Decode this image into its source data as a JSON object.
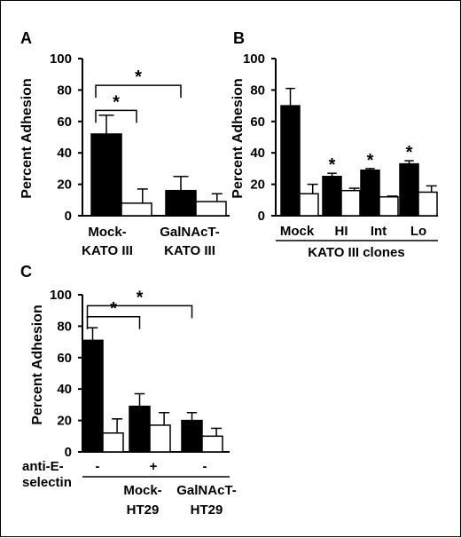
{
  "chart_data": [
    {
      "type": "bar",
      "panel_label": "A",
      "ylabel": "Percent Adhesion",
      "ylim": [
        0,
        100
      ],
      "yticks": [
        "0",
        "20",
        "40",
        "60",
        "80",
        "100"
      ],
      "groups": [
        {
          "label_lines": [
            "Mock-",
            "KATO III"
          ],
          "values": [
            52,
            8
          ],
          "errors": [
            12,
            9
          ]
        },
        {
          "label_lines": [
            "GalNAcT-",
            "KATO III"
          ],
          "values": [
            16,
            9
          ],
          "errors": [
            9,
            5
          ]
        }
      ],
      "significance": [
        {
          "from": [
            0,
            0
          ],
          "to": [
            0,
            1
          ],
          "level": 67,
          "label": "*"
        },
        {
          "from": [
            0,
            0
          ],
          "to": [
            1,
            0
          ],
          "level": 83,
          "label": "*"
        }
      ]
    },
    {
      "type": "bar",
      "panel_label": "B",
      "ylabel": "Percent Adhesion",
      "ylim": [
        0,
        100
      ],
      "yticks": [
        "0",
        "20",
        "40",
        "60",
        "80",
        "100"
      ],
      "groups": [
        {
          "label_lines": [
            "Mock"
          ],
          "values": [
            70,
            14
          ],
          "errors": [
            11,
            6
          ],
          "star": ""
        },
        {
          "label_lines": [
            "HI"
          ],
          "values": [
            25,
            16
          ],
          "errors": [
            2,
            1.5
          ],
          "star": "*"
        },
        {
          "label_lines": [
            "Int"
          ],
          "values": [
            29,
            12
          ],
          "errors": [
            1,
            0.5
          ],
          "star": "*"
        },
        {
          "label_lines": [
            "Lo"
          ],
          "values": [
            33,
            15
          ],
          "errors": [
            2,
            4
          ],
          "star": "*"
        }
      ],
      "xlabel": "KATO III clones"
    },
    {
      "type": "bar",
      "panel_label": "C",
      "ylabel": "Percent Adhesion",
      "ylim": [
        0,
        100
      ],
      "yticks": [
        "0",
        "20",
        "40",
        "60",
        "80",
        "100"
      ],
      "groups": [
        {
          "values": [
            71,
            12
          ],
          "errors": [
            8,
            9
          ],
          "sign": "-"
        },
        {
          "values": [
            29,
            17
          ],
          "errors": [
            8,
            8
          ],
          "sign": "+"
        },
        {
          "values": [
            20,
            10
          ],
          "errors": [
            5,
            5
          ],
          "sign": "-"
        }
      ],
      "row_label_lines": [
        "anti-E-",
        "selectin"
      ],
      "cell_labels": [
        {
          "label_lines": [
            "Mock-",
            "HT29"
          ],
          "groups": [
            0,
            1
          ]
        },
        {
          "label_lines": [
            "GalNAcT-",
            "HT29"
          ],
          "groups": [
            2
          ]
        }
      ],
      "significance": [
        {
          "from": [
            0,
            0
          ],
          "to": [
            1,
            0
          ],
          "level": 86,
          "label": "*"
        },
        {
          "from": [
            0,
            0
          ],
          "to": [
            2,
            0
          ],
          "level": 93,
          "label": "*"
        }
      ]
    }
  ],
  "colors": {
    "filled_bar": "#000000",
    "open_bar": "#ffffff",
    "axis": "#000000",
    "frame": "#000000"
  }
}
